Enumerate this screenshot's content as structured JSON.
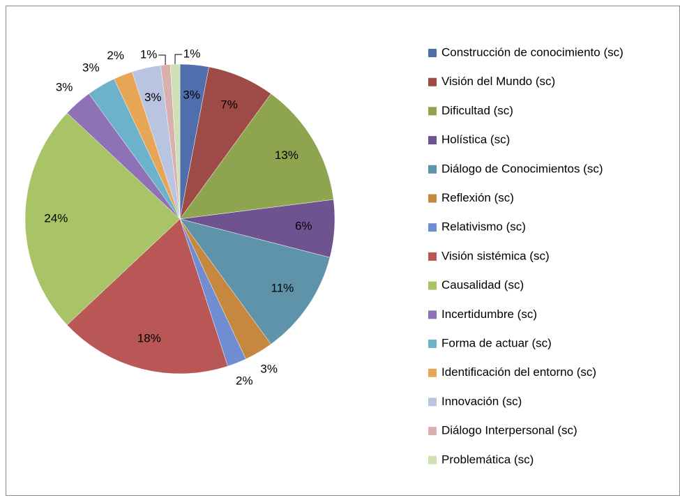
{
  "chart_data": {
    "type": "pie",
    "categories": [
      "Construcción de conocimiento (sc)",
      "Visión del Mundo (sc)",
      "Dificultad  (sc)",
      "Holística  (sc)",
      "Diálogo de Conocimientos (sc)",
      "Reflexión  (sc)",
      "Relativismo  (sc)",
      "Visión sistémica (sc)",
      "Causalidad  (sc)",
      "Incertidumbre  (sc)",
      "Forma de actuar  (sc)",
      "Identificación del  entorno  (sc)",
      "Innovación  (sc)",
      "Diálogo Interpersonal  (sc)",
      "Problemática  (sc)"
    ],
    "values": [
      3,
      7,
      13,
      6,
      11,
      3,
      2,
      18,
      24,
      3,
      3,
      2,
      3,
      1,
      1
    ],
    "value_labels": [
      "3%",
      "7%",
      "13%",
      "6%",
      "11%",
      "3%",
      "2%",
      "18%",
      "24%",
      "3%",
      "3%",
      "2%",
      "3%",
      "1%",
      "1%"
    ],
    "colors": [
      "#4f6eab",
      "#9e4a47",
      "#8ea44f",
      "#6e5390",
      "#5f93aa",
      "#c6873f",
      "#6f8dd0",
      "#b85755",
      "#a9c466",
      "#8f72b6",
      "#6cb2cb",
      "#e7a656",
      "#b9c4e0",
      "#d8b0ae",
      "#cfdfb6"
    ],
    "legend": "right"
  }
}
